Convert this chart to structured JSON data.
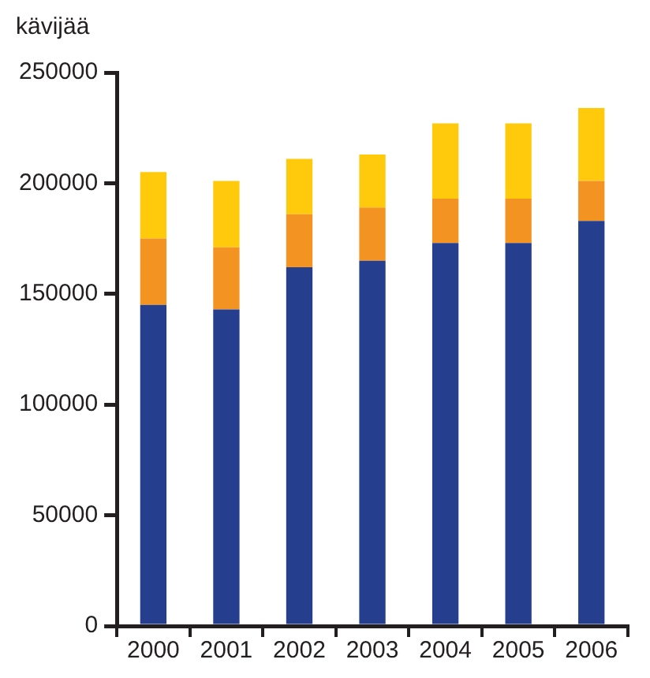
{
  "chart_data": {
    "type": "bar",
    "ylabel": "kävijää",
    "stacked": true,
    "categories": [
      "2000",
      "2001",
      "2002",
      "2003",
      "2004",
      "2005",
      "2006"
    ],
    "series": [
      {
        "color": "#253f8e",
        "values": [
          145000,
          143000,
          162000,
          165000,
          173000,
          173000,
          183000
        ]
      },
      {
        "color": "#f39322",
        "values": [
          30000,
          28000,
          24000,
          24000,
          20000,
          20000,
          18000
        ]
      },
      {
        "color": "#ffc90c",
        "values": [
          30000,
          30000,
          25000,
          24000,
          34000,
          34000,
          33000
        ]
      }
    ],
    "ylim": [
      0,
      250000
    ],
    "yticks": [
      0,
      50000,
      100000,
      150000,
      200000,
      250000
    ],
    "grid": false,
    "legend": false
  }
}
